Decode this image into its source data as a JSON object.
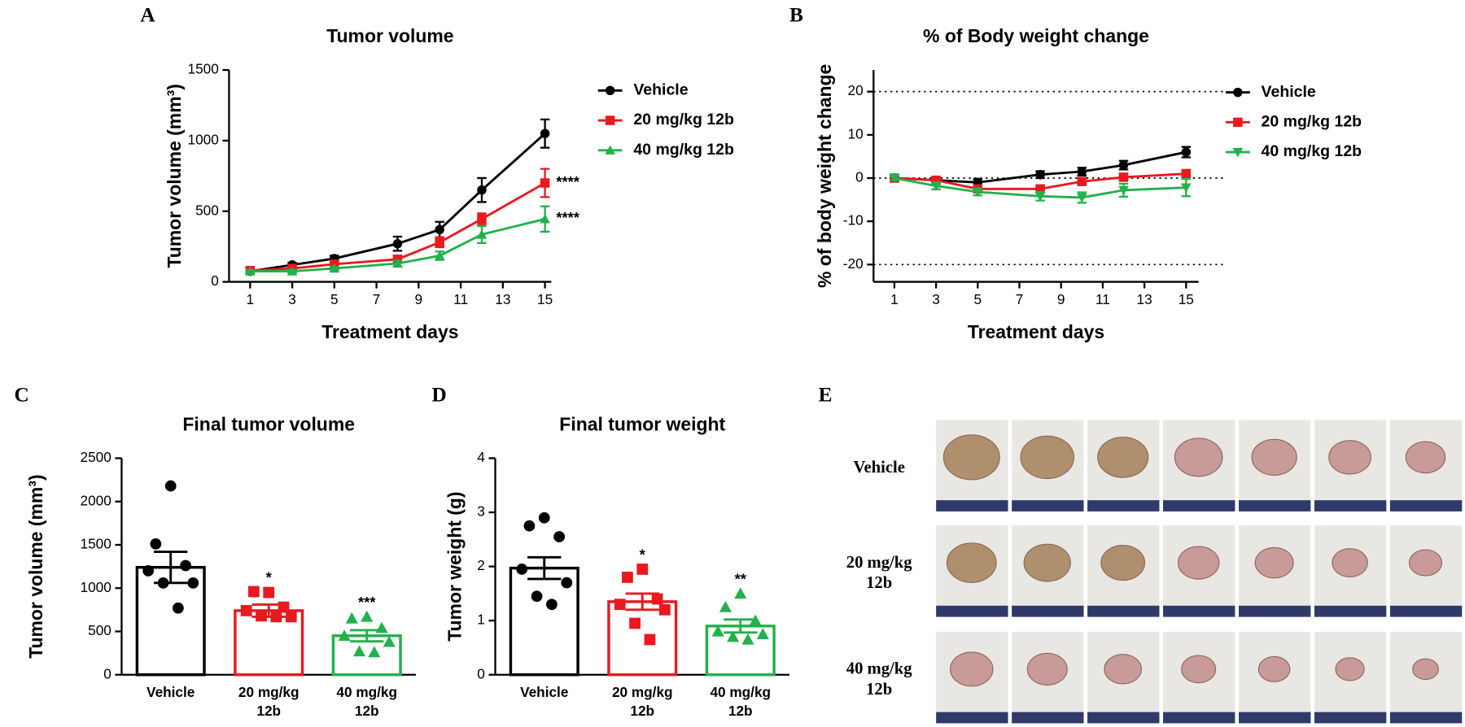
{
  "chart_data": [
    {
      "type": "line",
      "panel": "A",
      "title": "Tumor volume",
      "x_label": "Treatment days",
      "y_label": "Tumor volume (mm³)",
      "x": [
        1,
        3,
        5,
        8,
        10,
        12,
        15
      ],
      "xlim": [
        0,
        15.3
      ],
      "xticks": [
        1,
        3,
        5,
        7,
        9,
        11,
        13,
        15
      ],
      "ylim": [
        0,
        1500
      ],
      "yticks": [
        0,
        500,
        1000,
        1500
      ],
      "series": [
        {
          "name": "Vehicle",
          "color": "#000000",
          "marker": "circle",
          "values": [
            75,
            120,
            165,
            270,
            370,
            650,
            1050
          ],
          "errors": [
            10,
            15,
            20,
            50,
            55,
            85,
            100
          ]
        },
        {
          "name": "20 mg/kg 12b",
          "color": "#e8191f",
          "marker": "square",
          "values": [
            80,
            95,
            125,
            160,
            280,
            445,
            700
          ],
          "errors": [
            10,
            12,
            15,
            25,
            35,
            40,
            100
          ],
          "end_label": "****"
        },
        {
          "name": "40 mg/kg 12b",
          "color": "#22b14c",
          "marker": "triangle",
          "values": [
            75,
            75,
            95,
            130,
            185,
            335,
            445
          ],
          "errors": [
            8,
            10,
            12,
            20,
            30,
            60,
            90
          ],
          "end_label": "****"
        }
      ]
    },
    {
      "type": "line",
      "panel": "B",
      "title": "% of Body weight change",
      "x_label": "Treatment days",
      "y_label": "% of body weight change",
      "x": [
        1,
        3,
        5,
        8,
        10,
        12,
        15
      ],
      "xlim": [
        0,
        15.6
      ],
      "xticks": [
        1,
        3,
        5,
        7,
        9,
        11,
        13,
        15
      ],
      "ylim": [
        -24,
        25
      ],
      "yticks": [
        -20,
        -10,
        0,
        10,
        20
      ],
      "reference_lines": [
        -20,
        0,
        20
      ],
      "series": [
        {
          "name": "Vehicle",
          "color": "#000000",
          "marker": "circle",
          "values": [
            0,
            -0.5,
            -1,
            0.8,
            1.5,
            3,
            6
          ],
          "errors": [
            0.5,
            0.5,
            0.8,
            0.8,
            0.9,
            1,
            1.2
          ]
        },
        {
          "name": "20 mg/kg 12b",
          "color": "#e8191f",
          "marker": "square",
          "values": [
            0,
            -0.5,
            -2.5,
            -2.5,
            -0.8,
            0.2,
            1
          ],
          "errors": [
            0.4,
            0.5,
            0.6,
            0.7,
            0.7,
            0.8,
            0.9
          ]
        },
        {
          "name": "40 mg/kg 12b",
          "color": "#22b14c",
          "marker": "triangle-down",
          "values": [
            0,
            -1.8,
            -3.2,
            -4.2,
            -4.5,
            -2.8,
            -2.2
          ],
          "errors": [
            0.5,
            0.8,
            0.8,
            1,
            1.2,
            1.5,
            2
          ]
        }
      ]
    },
    {
      "type": "bar",
      "panel": "C",
      "title": "Final tumor volume",
      "y_label": "Tumor volume (mm³)",
      "categories": [
        [
          "Vehicle"
        ],
        [
          "20 mg/kg",
          "12b"
        ],
        [
          "40 mg/kg",
          "12b"
        ]
      ],
      "colors": [
        "#000000",
        "#e8191f",
        "#22b14c"
      ],
      "markers": [
        "circle",
        "square",
        "triangle"
      ],
      "values": [
        1240,
        740,
        450
      ],
      "errors": [
        180,
        70,
        65
      ],
      "significance": [
        null,
        "*",
        "***"
      ],
      "points": [
        [
          2180,
          1510,
          1260,
          1200,
          1060,
          1060,
          770
        ],
        [
          950,
          960,
          780,
          740,
          670,
          680,
          670
        ],
        [
          670,
          650,
          540,
          450,
          380,
          270,
          260
        ]
      ],
      "ylim": [
        0,
        2500
      ],
      "yticks": [
        0,
        500,
        1000,
        1500,
        2000,
        2500
      ]
    },
    {
      "type": "bar",
      "panel": "D",
      "title": "Final tumor weight",
      "y_label": "Tumor weight (g)",
      "categories": [
        [
          "Vehicle"
        ],
        [
          "20 mg/kg",
          "12b"
        ],
        [
          "40 mg/kg",
          "12b"
        ]
      ],
      "colors": [
        "#000000",
        "#e8191f",
        "#22b14c"
      ],
      "markers": [
        "circle",
        "square",
        "triangle"
      ],
      "values": [
        1.97,
        1.35,
        0.9
      ],
      "errors": [
        0.2,
        0.15,
        0.12
      ],
      "significance": [
        null,
        "*",
        "**"
      ],
      "points": [
        [
          2.9,
          2.75,
          2.55,
          1.95,
          1.7,
          1.45,
          1.3
        ],
        [
          1.95,
          1.8,
          1.4,
          1.3,
          1.2,
          0.95,
          0.65
        ],
        [
          1.5,
          1.25,
          1.0,
          0.8,
          0.75,
          0.7,
          0.65
        ]
      ],
      "ylim": [
        0,
        4
      ],
      "yticks": [
        0,
        1,
        2,
        3,
        4
      ]
    }
  ],
  "photos": {
    "panel": "E",
    "rows": [
      [
        "Vehicle"
      ],
      [
        "20 mg/kg",
        "12b"
      ],
      [
        "40 mg/kg",
        "12b"
      ]
    ]
  }
}
